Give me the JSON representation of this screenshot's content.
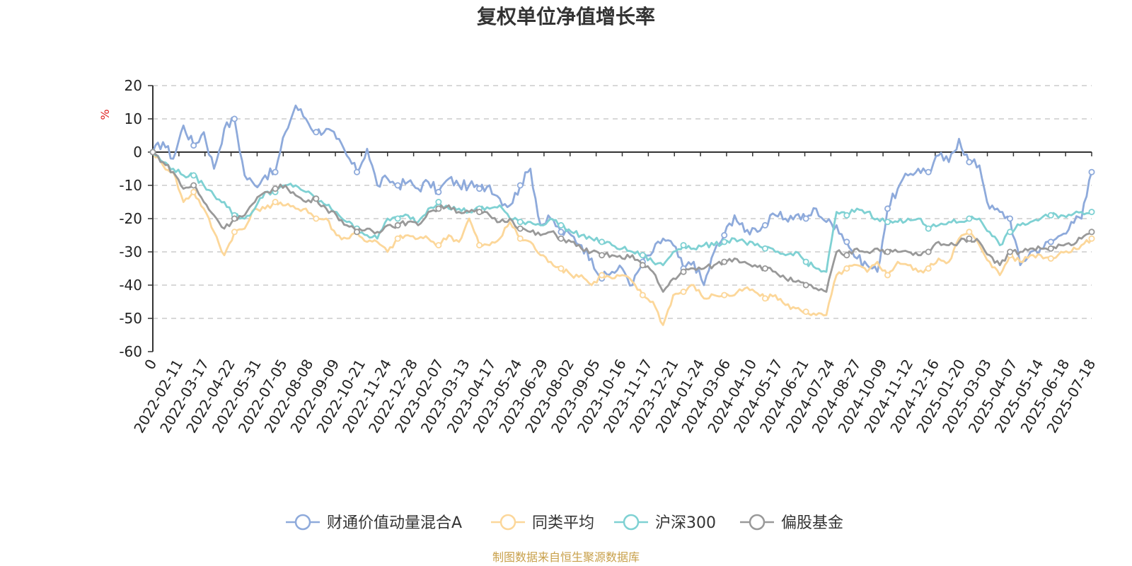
{
  "chart_data": {
    "type": "line",
    "title": "复权单位净值增长率",
    "ylabel": "%",
    "ylim": [
      -60,
      20
    ],
    "yticks": [
      20,
      10,
      0,
      -10,
      -20,
      -30,
      -40,
      -50,
      -60
    ],
    "grid": true,
    "legend_position": "bottom-center",
    "source_note": "制图数据来自恒生聚源数据库",
    "x_ticks": [
      "0",
      "2022-02-11",
      "2022-03-17",
      "2022-04-22",
      "2022-05-31",
      "2022-07-05",
      "2022-08-08",
      "2022-09-09",
      "2022-10-21",
      "2022-11-24",
      "2022-12-28",
      "2023-02-07",
      "2023-03-13",
      "2023-04-17",
      "2023-05-24",
      "2023-06-29",
      "2023-08-02",
      "2023-09-05",
      "2023-10-16",
      "2023-11-17",
      "2023-12-21",
      "2024-01-24",
      "2024-03-06",
      "2024-04-10",
      "2024-05-17",
      "2024-06-21",
      "2024-07-24",
      "2024-08-27",
      "2024-10-09",
      "2024-11-12",
      "2024-12-16",
      "2025-01-20",
      "2025-03-03",
      "2025-04-07",
      "2025-05-14",
      "2025-06-18",
      "2025-07-18"
    ],
    "series": [
      {
        "name": "财通价值动量混合A",
        "color": "#8eaadb",
        "values": [
          0,
          3,
          -2,
          8,
          2,
          6,
          -5,
          7,
          10,
          -7,
          -10,
          -7,
          -6,
          6,
          14,
          10,
          6,
          7,
          4,
          -1,
          -6,
          1,
          -10,
          -8,
          -10,
          -9,
          -11,
          -9,
          -12,
          -8,
          -10,
          -10,
          -11,
          -10,
          -14,
          -16,
          -10,
          -5,
          -22,
          -20,
          -24,
          -25,
          -28,
          -32,
          -38,
          -36,
          -35,
          -40,
          -33,
          -30,
          -26,
          -28,
          -35,
          -33,
          -40,
          -30,
          -25,
          -19,
          -24,
          -23,
          -22,
          -19,
          -20,
          -19,
          -20,
          -17,
          -21,
          -22,
          -27,
          -32,
          -34,
          -36,
          -17,
          -11,
          -7,
          -5,
          -6,
          -1,
          -3,
          4,
          -3,
          -4,
          -17,
          -18,
          -20,
          -34,
          -30,
          -29,
          -27,
          -25,
          -21,
          -20,
          -6
        ]
      },
      {
        "name": "同类平均",
        "color": "#fcd79a",
        "values": [
          0,
          -4,
          -6,
          -15,
          -12,
          -17,
          -24,
          -31,
          -24,
          -23,
          -17,
          -17,
          -15,
          -16,
          -17,
          -17,
          -20,
          -20,
          -25,
          -26,
          -24,
          -27,
          -27,
          -30,
          -26,
          -25,
          -26,
          -26,
          -28,
          -25,
          -27,
          -20,
          -28,
          -28,
          -26,
          -21,
          -26,
          -27,
          -31,
          -33,
          -35,
          -37,
          -37,
          -40,
          -37,
          -38,
          -37,
          -39,
          -43,
          -45,
          -52,
          -43,
          -42,
          -40,
          -44,
          -43,
          -43,
          -43,
          -41,
          -42,
          -44,
          -43,
          -46,
          -47,
          -48,
          -49,
          -49,
          -37,
          -35,
          -34,
          -36,
          -33,
          -37,
          -33,
          -34,
          -36,
          -35,
          -32,
          -33,
          -26,
          -24,
          -28,
          -33,
          -37,
          -31,
          -33,
          -31,
          -31,
          -32,
          -30,
          -30,
          -28,
          -26
        ]
      },
      {
        "name": "沪深300",
        "color": "#7fd1d3",
        "values": [
          0,
          -3,
          -5,
          -7,
          -7,
          -10,
          -13,
          -15,
          -19,
          -20,
          -17,
          -12,
          -12,
          -10,
          -10,
          -12,
          -14,
          -16,
          -18,
          -21,
          -23,
          -25,
          -26,
          -20,
          -20,
          -19,
          -21,
          -17,
          -15,
          -17,
          -17,
          -18,
          -17,
          -17,
          -16,
          -20,
          -21,
          -21,
          -22,
          -20,
          -22,
          -24,
          -25,
          -26,
          -27,
          -28,
          -29,
          -30,
          -31,
          -33,
          -34,
          -30,
          -28,
          -29,
          -28,
          -28,
          -27,
          -26,
          -27,
          -28,
          -29,
          -30,
          -31,
          -30,
          -33,
          -35,
          -36,
          -18,
          -19,
          -17,
          -18,
          -20,
          -21,
          -21,
          -20,
          -20,
          -23,
          -22,
          -21,
          -21,
          -20,
          -20,
          -24,
          -28,
          -24,
          -22,
          -21,
          -20,
          -19,
          -19,
          -19,
          -18,
          -18
        ]
      },
      {
        "name": "偏股基金",
        "color": "#999999",
        "values": [
          0,
          -3,
          -6,
          -11,
          -10,
          -15,
          -19,
          -23,
          -20,
          -19,
          -15,
          -12,
          -11,
          -10,
          -13,
          -15,
          -14,
          -17,
          -19,
          -22,
          -24,
          -23,
          -24,
          -22,
          -22,
          -21,
          -22,
          -18,
          -17,
          -16,
          -18,
          -18,
          -18,
          -19,
          -21,
          -20,
          -23,
          -24,
          -25,
          -24,
          -26,
          -27,
          -29,
          -30,
          -31,
          -31,
          -32,
          -31,
          -34,
          -36,
          -42,
          -38,
          -36,
          -35,
          -35,
          -34,
          -33,
          -32,
          -33,
          -34,
          -35,
          -36,
          -38,
          -39,
          -40,
          -41,
          -42,
          -30,
          -31,
          -29,
          -30,
          -29,
          -30,
          -30,
          -30,
          -31,
          -30,
          -27,
          -28,
          -27,
          -26,
          -27,
          -31,
          -34,
          -30,
          -30,
          -29,
          -29,
          -29,
          -28,
          -28,
          -26,
          -24
        ]
      }
    ]
  }
}
